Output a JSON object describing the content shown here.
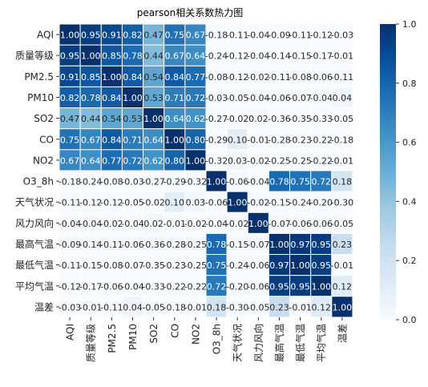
{
  "chart_data": {
    "type": "heatmap",
    "title": "pearson相关系数热力图",
    "categories": [
      "AQI",
      "质量等级",
      "PM2.5",
      "PM10",
      "SO2",
      "CO",
      "NO2",
      "O3_8h",
      "天气状况",
      "风力风向",
      "最高气温",
      "最低气温",
      "平均气温",
      "温差"
    ],
    "x": [
      "AQI",
      "质量等级",
      "PM2.5",
      "PM10",
      "SO2",
      "CO",
      "NO2",
      "O3_8h",
      "天气状况",
      "风力风向",
      "最高气温",
      "最低气温",
      "平均气温",
      "温差"
    ],
    "y": [
      "AQI",
      "质量等级",
      "PM2.5",
      "PM10",
      "SO2",
      "CO",
      "NO2",
      "O3_8h",
      "天气状况",
      "风力风向",
      "最高气温",
      "最低气温",
      "平均气温",
      "温差"
    ],
    "values": [
      [
        1.0,
        0.95,
        0.91,
        0.82,
        0.47,
        0.75,
        0.67,
        -0.18,
        -0.11,
        -0.04,
        -0.09,
        -0.11,
        -0.12,
        -0.03
      ],
      [
        0.95,
        1.0,
        0.85,
        0.78,
        0.44,
        0.67,
        0.64,
        -0.24,
        -0.12,
        -0.04,
        -0.14,
        -0.15,
        -0.17,
        -0.01
      ],
      [
        0.91,
        0.85,
        1.0,
        0.84,
        0.54,
        0.84,
        0.77,
        -0.08,
        -0.12,
        -0.02,
        -0.11,
        -0.08,
        -0.06,
        -0.11
      ],
      [
        0.82,
        0.78,
        0.84,
        1.0,
        0.53,
        0.71,
        0.72,
        -0.03,
        -0.05,
        -0.04,
        -0.06,
        -0.07,
        -0.04,
        0.04
      ],
      [
        0.47,
        0.44,
        0.54,
        0.53,
        1.0,
        0.64,
        0.62,
        -0.27,
        -0.02,
        0.02,
        -0.36,
        -0.35,
        -0.33,
        -0.05
      ],
      [
        0.75,
        0.67,
        0.84,
        0.71,
        0.64,
        1.0,
        0.8,
        -0.29,
        0.1,
        -0.01,
        -0.28,
        -0.23,
        -0.22,
        -0.18
      ],
      [
        0.67,
        0.64,
        0.77,
        0.72,
        0.62,
        0.8,
        1.0,
        -0.32,
        0.03,
        -0.02,
        -0.25,
        -0.25,
        -0.22,
        -0.01
      ],
      [
        -0.18,
        -0.24,
        -0.08,
        -0.03,
        -0.27,
        -0.29,
        -0.32,
        1.0,
        -0.06,
        -0.04,
        0.78,
        0.75,
        0.72,
        0.18
      ],
      [
        -0.11,
        -0.12,
        -0.12,
        -0.05,
        -0.02,
        0.1,
        0.03,
        -0.06,
        1.0,
        -0.02,
        -0.15,
        -0.24,
        -0.2,
        -0.3
      ],
      [
        -0.04,
        -0.04,
        -0.02,
        -0.04,
        0.02,
        -0.01,
        -0.02,
        -0.04,
        -0.02,
        1.0,
        -0.07,
        -0.06,
        -0.06,
        -0.05
      ],
      [
        -0.09,
        -0.14,
        -0.11,
        -0.06,
        -0.36,
        -0.28,
        -0.25,
        0.78,
        -0.15,
        -0.07,
        1.0,
        0.97,
        0.95,
        0.23
      ],
      [
        -0.11,
        -0.15,
        -0.08,
        -0.07,
        -0.35,
        -0.23,
        -0.25,
        0.75,
        -0.24,
        -0.06,
        0.97,
        1.0,
        0.95,
        -0.01
      ],
      [
        -0.12,
        -0.17,
        -0.06,
        -0.04,
        -0.33,
        -0.22,
        -0.22,
        0.72,
        -0.2,
        -0.06,
        0.95,
        0.95,
        1.0,
        0.12
      ],
      [
        -0.03,
        -0.01,
        -0.11,
        0.04,
        -0.05,
        -0.18,
        -0.01,
        0.18,
        -0.3,
        -0.05,
        0.23,
        -0.01,
        0.12,
        1.0
      ]
    ],
    "vmin": 0.0,
    "vmax": 1.0,
    "colorbar_ticks": [
      "0.0",
      "0.2",
      "0.4",
      "0.6",
      "0.8",
      "1.0"
    ],
    "colormap": [
      "#f7fbff",
      "#deebf7",
      "#c6dbef",
      "#9ecae1",
      "#6baed6",
      "#4292c6",
      "#2171b5",
      "#08519c",
      "#08306b"
    ],
    "cell_border_color": "#ffffff",
    "legend": "colorbar-right",
    "grid": false
  }
}
